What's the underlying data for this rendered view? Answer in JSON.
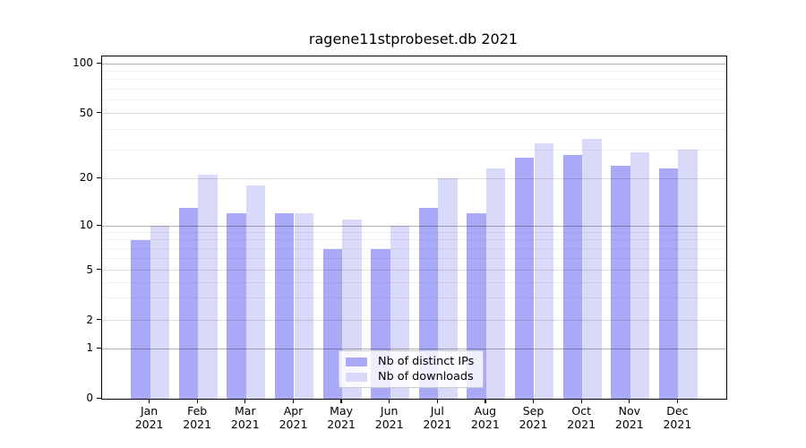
{
  "title": "ragene11stprobeset.db 2021",
  "chart_data": {
    "type": "bar",
    "title": "ragene11stprobeset.db 2021",
    "categories": [
      "Jan 2021",
      "Feb 2021",
      "Mar 2021",
      "Apr 2021",
      "May 2021",
      "Jun 2021",
      "Jul 2021",
      "Aug 2021",
      "Sep 2021",
      "Oct 2021",
      "Nov 2021",
      "Dec 2021"
    ],
    "series": [
      {
        "key": "distinct-ips",
        "name": "Nb of distinct IPs",
        "color": "#a9a9f8",
        "values": [
          8,
          13,
          12,
          12,
          7,
          7,
          13,
          12,
          27,
          28,
          24,
          23
        ]
      },
      {
        "key": "downloads",
        "name": "Nb of downloads",
        "color": "#d9d9f9",
        "values": [
          10,
          21,
          18,
          12,
          11,
          10,
          20,
          23,
          33,
          35,
          29,
          30
        ]
      }
    ],
    "xlabel": "",
    "ylabel": "",
    "yscale": "log-like (linear segment between 0 and 1)",
    "ylim": [
      0,
      100
    ],
    "y_ticks": [
      100,
      50,
      20,
      10,
      5,
      2,
      1,
      0
    ],
    "gridlines": {
      "decade": [
        1,
        10,
        100
      ],
      "submajor": [
        2,
        5,
        20,
        50
      ],
      "minor": [
        3,
        4,
        6,
        7,
        8,
        9,
        30,
        40,
        60,
        70,
        80,
        90
      ]
    },
    "grid": true,
    "legend_position": "lower center, inside plot"
  }
}
